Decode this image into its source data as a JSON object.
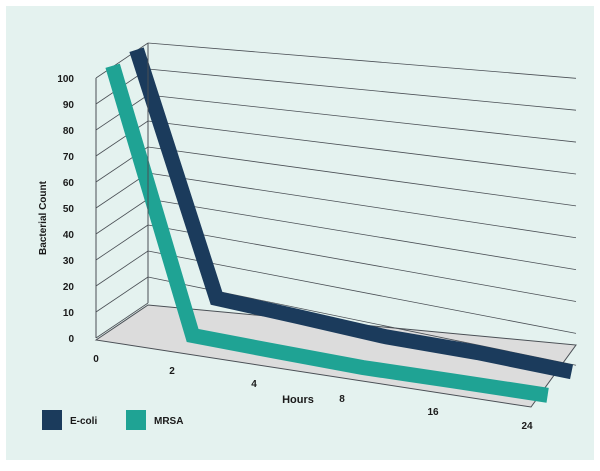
{
  "chart_data": {
    "type": "line",
    "title": "",
    "xlabel": "Hours",
    "ylabel": "Bacterial Count",
    "x": [
      "0",
      "2",
      "4",
      "8",
      "16",
      "24"
    ],
    "ylim": [
      0,
      100
    ],
    "yticks": [
      "0",
      "10",
      "20",
      "30",
      "40",
      "50",
      "60",
      "70",
      "80",
      "90",
      "100"
    ],
    "grid": true,
    "legend_position": "bottom-left",
    "series": [
      {
        "name": "E-coli",
        "color": "#1b3b5c",
        "values": [
          100,
          10,
          8,
          6,
          5,
          3
        ]
      },
      {
        "name": "MRSA",
        "color": "#1fa394",
        "values": [
          100,
          2,
          1,
          0.5,
          0.3,
          0.2
        ]
      }
    ],
    "colors": {
      "background": "#e4f2ef",
      "grid": "#4a4f55",
      "floor": "#dcdcdc"
    }
  }
}
